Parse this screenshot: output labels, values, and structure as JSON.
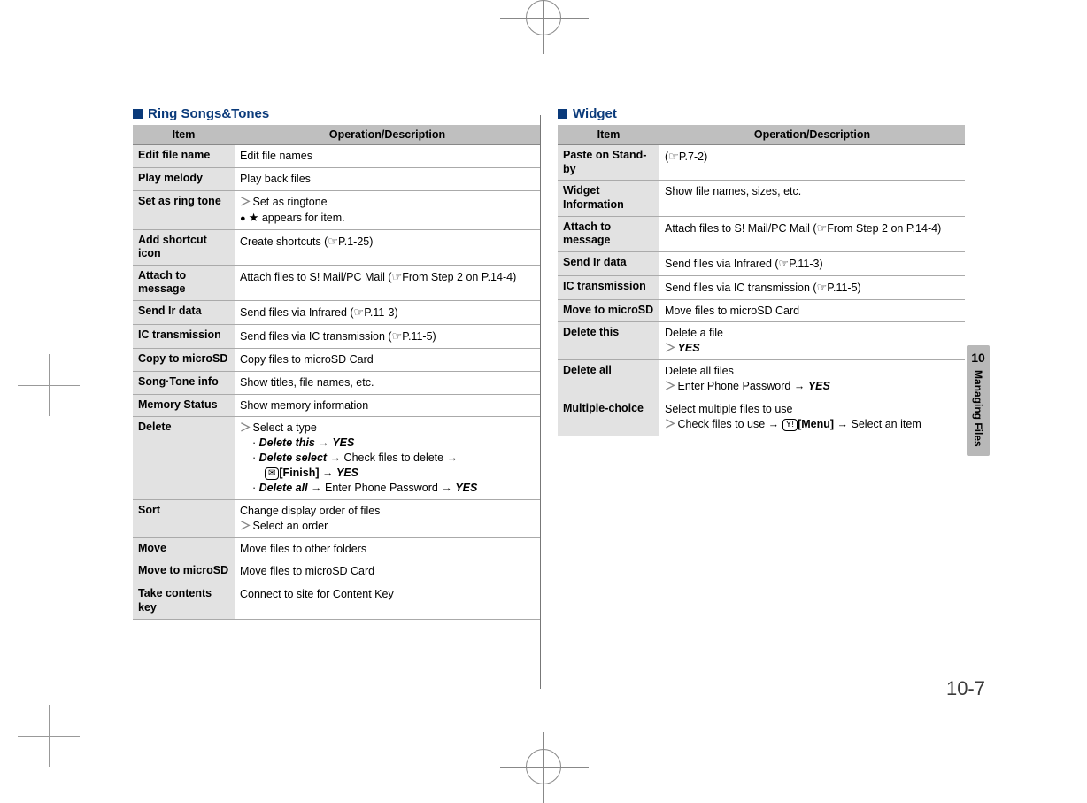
{
  "chapter_tab": {
    "number": "10",
    "label": "Managing Files"
  },
  "page_number": "10-7",
  "left": {
    "title": "Ring Songs&Tones",
    "headers": {
      "item": "Item",
      "op": "Operation/Description"
    },
    "rows": {
      "edit_file_name": {
        "item": "Edit file name",
        "desc": "Edit file names"
      },
      "play_melody": {
        "item": "Play melody",
        "desc": "Play back files"
      },
      "set_ringtone": {
        "item": "Set as ring tone",
        "line1": "Set as ringtone",
        "line2_prefix": "●  ",
        "line2_star": "★",
        "line2_suffix": " appears for item."
      },
      "add_shortcut": {
        "item": "Add shortcut icon",
        "desc_pre": "Create shortcuts (",
        "ref": "P.1-25",
        "desc_post": ")"
      },
      "attach_msg": {
        "item": "Attach to message",
        "desc_pre": "Attach files to S! Mail/PC Mail (",
        "ref": "From Step 2 on P.14-4",
        "desc_post": ")"
      },
      "send_ir": {
        "item": "Send Ir data",
        "desc_pre": "Send files via Infrared (",
        "ref": "P.11-3",
        "desc_post": ")"
      },
      "ic_trans": {
        "item": "IC transmission",
        "desc_pre": "Send files via IC transmission (",
        "ref": "P.11-5",
        "desc_post": ")"
      },
      "copy_sd": {
        "item": "Copy to microSD",
        "desc": "Copy files to microSD Card"
      },
      "song_info": {
        "item": "Song·Tone info",
        "desc": "Show titles, file names, etc."
      },
      "mem_status": {
        "item": "Memory Status",
        "desc": "Show memory information"
      },
      "delete": {
        "item": "Delete",
        "line1": "Select a type",
        "dt": "Delete this",
        "dt_tail": "YES",
        "ds": "Delete select",
        "ds_mid": " Check files to delete ",
        "ds_key": "[Finish]",
        "ds_tail": "YES",
        "da": "Delete all",
        "da_mid": " Enter Phone Password ",
        "da_tail": "YES"
      },
      "sort": {
        "item": "Sort",
        "line1": "Change display order of files",
        "line2": "Select an order"
      },
      "move": {
        "item": "Move",
        "desc": "Move files to other folders"
      },
      "move_sd": {
        "item": "Move to microSD",
        "desc": "Move files to microSD Card"
      },
      "take_key": {
        "item": "Take contents key",
        "desc": "Connect to site for Content Key"
      }
    }
  },
  "right": {
    "title": "Widget",
    "headers": {
      "item": "Item",
      "op": "Operation/Description"
    },
    "rows": {
      "paste": {
        "item": "Paste on Stand-by",
        "desc_pre": "(",
        "ref": "P.7-2",
        "desc_post": ")"
      },
      "info": {
        "item": "Widget Information",
        "desc": "Show file names, sizes, etc."
      },
      "attach_msg": {
        "item": "Attach to message",
        "desc_pre": "Attach files to S! Mail/PC Mail (",
        "ref": "From Step 2 on P.14-4",
        "desc_post": ")"
      },
      "send_ir": {
        "item": "Send Ir data",
        "desc_pre": "Send files via Infrared (",
        "ref": "P.11-3",
        "desc_post": ")"
      },
      "ic_trans": {
        "item": "IC transmission",
        "desc_pre": "Send files via IC transmission (",
        "ref": "P.11-5",
        "desc_post": ")"
      },
      "move_sd": {
        "item": "Move to microSD",
        "desc": "Move files to microSD Card"
      },
      "del_this": {
        "item": "Delete this",
        "line1": "Delete a file",
        "tail": "YES"
      },
      "del_all": {
        "item": "Delete all",
        "line1": "Delete all files",
        "mid": "Enter Phone Password ",
        "tail": "YES"
      },
      "multi": {
        "item": "Multiple-choice",
        "line1": "Select multiple files to use",
        "mid1": "Check files to use ",
        "key": "[Menu]",
        "mid2": " Select an item"
      }
    }
  },
  "glyphs": {
    "arrow": "→",
    "hand": "☞",
    "gt": "＞",
    "dot": "·",
    "mail": "✉",
    "menu": "Y!"
  }
}
